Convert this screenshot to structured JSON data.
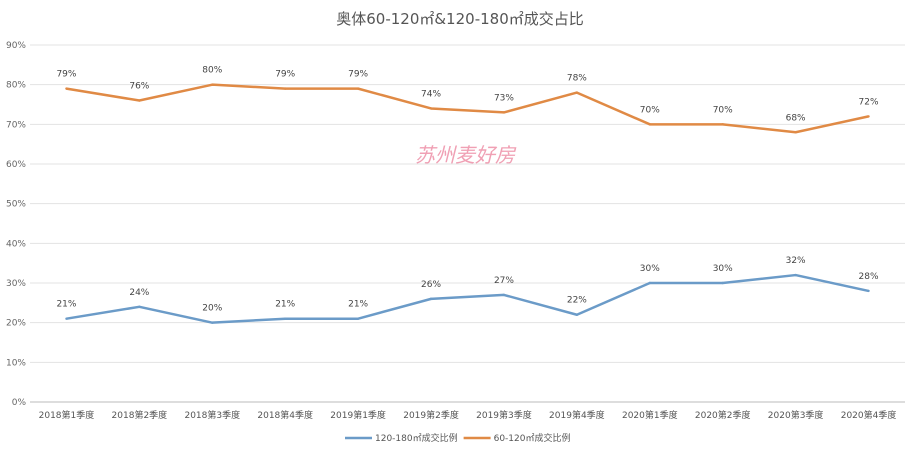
{
  "chart_data": {
    "type": "line",
    "title": "奥体60-120㎡&120-180㎡成交占比",
    "categories": [
      "2018第1季度",
      "2018第2季度",
      "2018第3季度",
      "2018第4季度",
      "2019第1季度",
      "2019第2季度",
      "2019第3季度",
      "2019第4季度",
      "2020第1季度",
      "2020第2季度",
      "2020第3季度",
      "2020第4季度"
    ],
    "series": [
      {
        "name": "120-180㎡成交比例",
        "color": "#6b9bc8",
        "values": [
          21,
          24,
          20,
          21,
          21,
          26,
          27,
          22,
          30,
          30,
          32,
          28
        ],
        "labels": [
          "21%",
          "24%",
          "20%",
          "21%",
          "21%",
          "26%",
          "27%",
          "22%",
          "30%",
          "30%",
          "32%",
          "28%"
        ]
      },
      {
        "name": "60-120㎡成交比例",
        "color": "#e08a45",
        "values": [
          79,
          76,
          80,
          79,
          79,
          74,
          73,
          78,
          70,
          70,
          68,
          72
        ],
        "labels": [
          "79%",
          "76%",
          "80%",
          "79%",
          "79%",
          "74%",
          "73%",
          "78%",
          "70%",
          "70%",
          "68%",
          "72%"
        ]
      }
    ],
    "yticks": [
      "0%",
      "10%",
      "20%",
      "30%",
      "40%",
      "50%",
      "60%",
      "70%",
      "80%",
      "90%"
    ],
    "ylim": [
      0,
      90
    ],
    "grid": true,
    "legend": "bottom",
    "watermark": "苏州麦好房"
  }
}
